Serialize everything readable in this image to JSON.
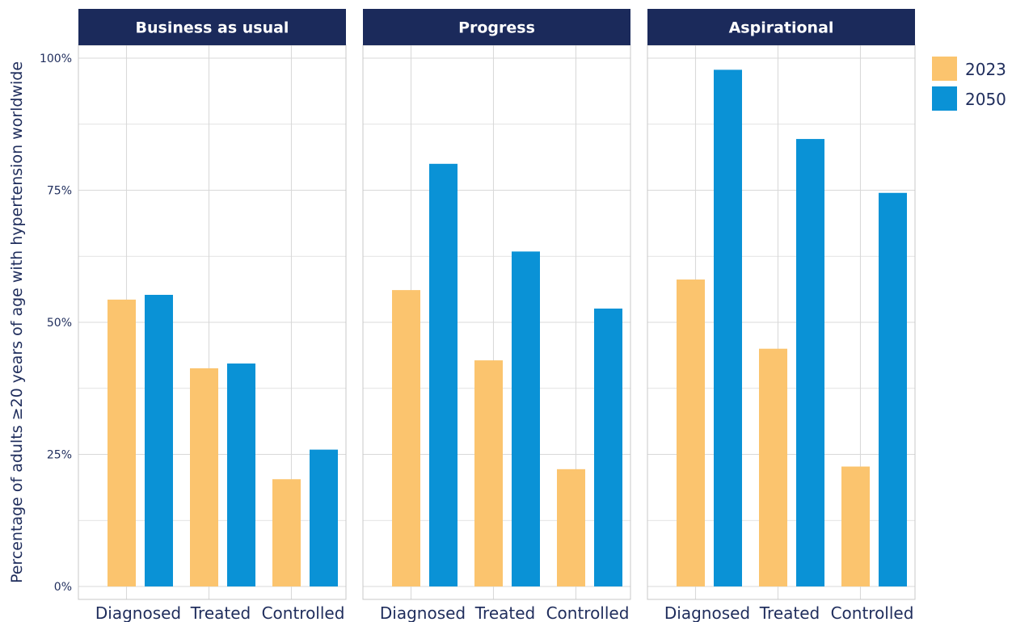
{
  "chart_data": {
    "type": "bar",
    "ylabel": "Percentage of adults ≥20 years of age with hypertension worldwide",
    "ylim": [
      0,
      100
    ],
    "yticks": [
      "0%",
      "25%",
      "50%",
      "75%",
      "100%"
    ],
    "categories": [
      "Diagnosed",
      "Treated",
      "Controlled"
    ],
    "legend": {
      "position": "right",
      "entries": [
        "2023",
        "2050"
      ]
    },
    "colors": {
      "2023": "#fbc46e",
      "2050": "#0a92d6",
      "strip": "#1b2a5b",
      "grid": "#d9d9d9",
      "text": "#1f2d5c"
    },
    "grid": true,
    "panels": [
      {
        "title": "Business as usual",
        "series": [
          {
            "name": "2023",
            "values": [
              54.3,
              41.3,
              20.3
            ]
          },
          {
            "name": "2050",
            "values": [
              55.2,
              42.2,
              25.9
            ]
          }
        ]
      },
      {
        "title": "Progress",
        "series": [
          {
            "name": "2023",
            "values": [
              56.1,
              42.8,
              22.2
            ]
          },
          {
            "name": "2050",
            "values": [
              80.0,
              63.4,
              52.6
            ]
          }
        ]
      },
      {
        "title": "Aspirational",
        "series": [
          {
            "name": "2023",
            "values": [
              58.1,
              45.0,
              22.7
            ]
          },
          {
            "name": "2050",
            "values": [
              97.8,
              84.7,
              74.5
            ]
          }
        ]
      }
    ]
  }
}
